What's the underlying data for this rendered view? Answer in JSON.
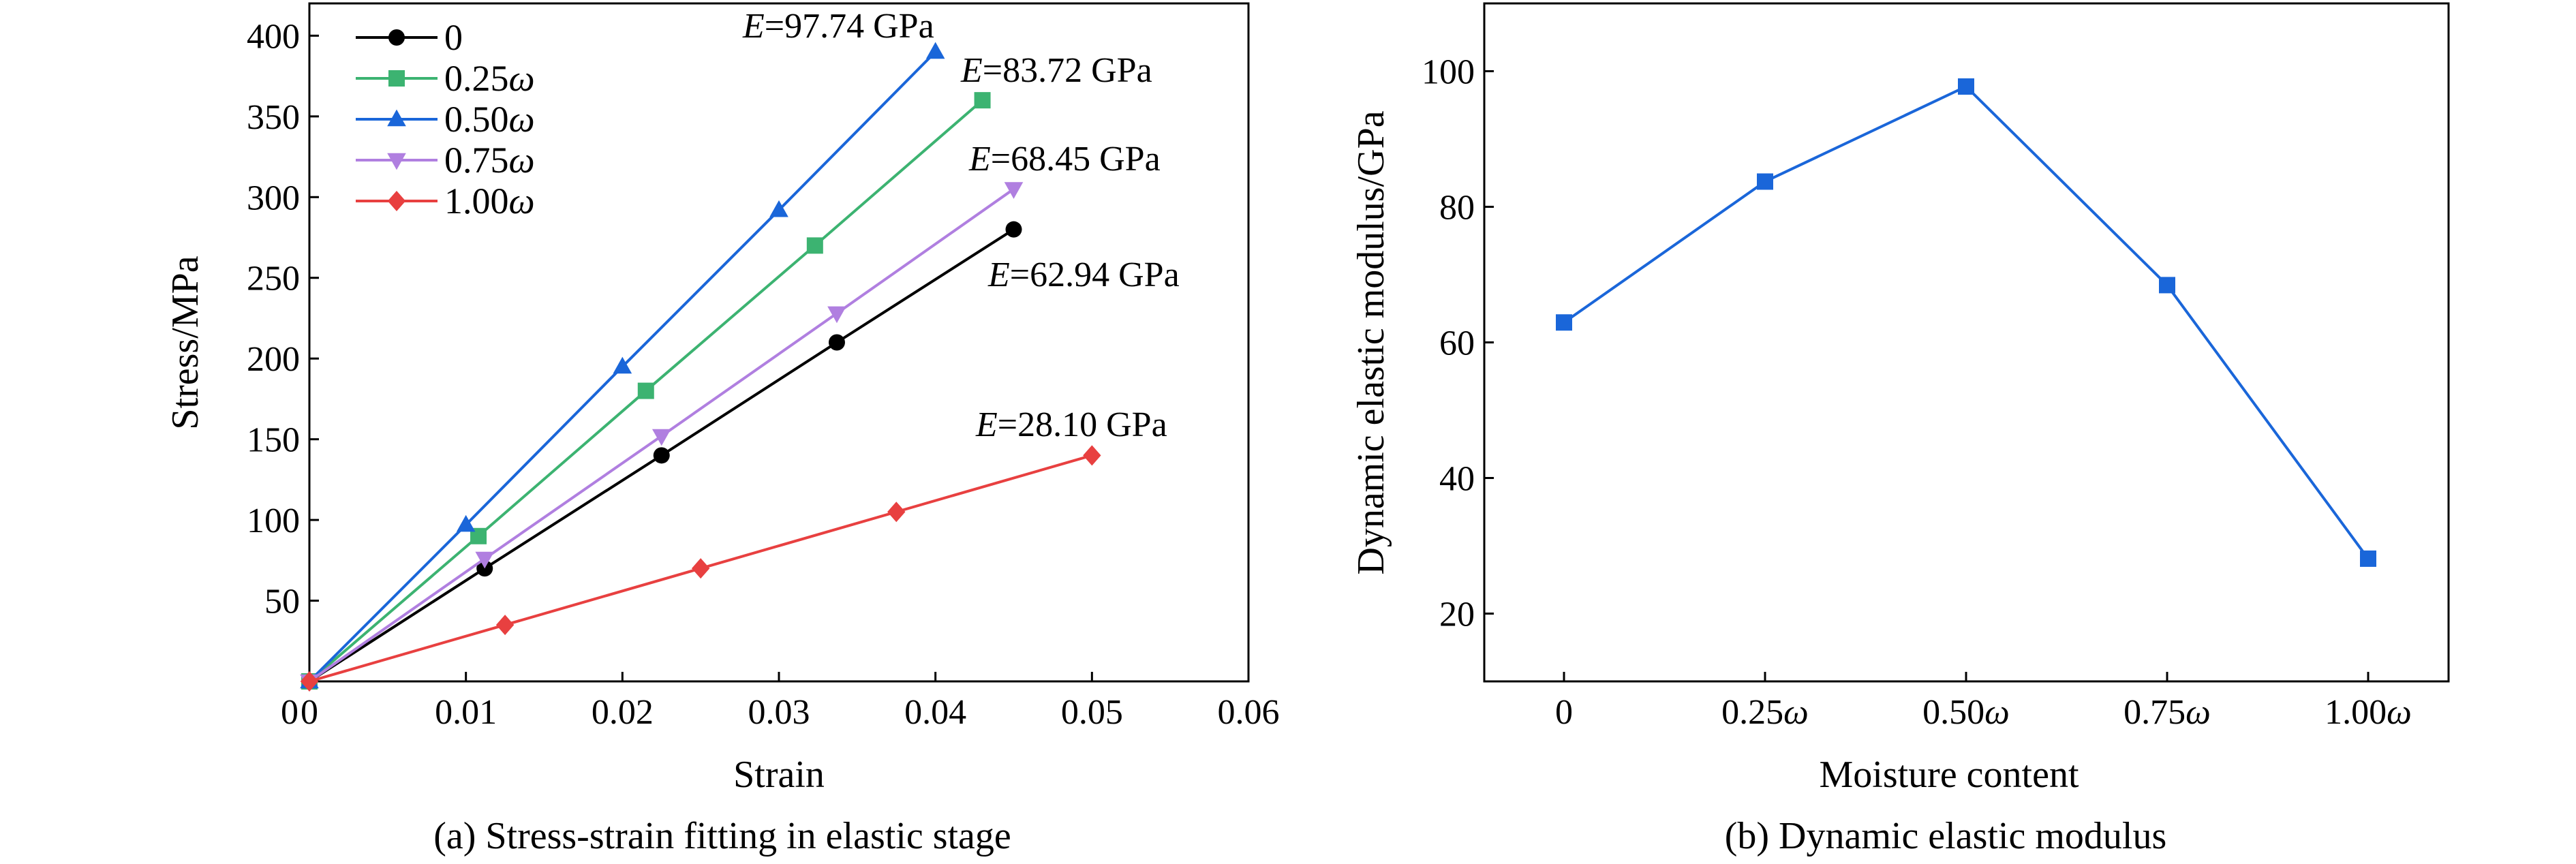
{
  "chart_data": [
    {
      "type": "line",
      "caption": "(a) Stress-strain fitting in elastic stage",
      "xlabel": "Strain",
      "ylabel": "Stress/MPa",
      "xlim": [
        0,
        0.06
      ],
      "ylim": [
        0,
        420
      ],
      "x_ticks": [
        "0",
        "0.01",
        "0.02",
        "0.03",
        "0.04",
        "0.05",
        "0.06"
      ],
      "x_tick_values": [
        0,
        0.01,
        0.02,
        0.03,
        0.04,
        0.05,
        0.06
      ],
      "y_ticks": [
        "50",
        "100",
        "150",
        "200",
        "250",
        "300",
        "350",
        "400"
      ],
      "y_tick_values": [
        50,
        100,
        150,
        200,
        250,
        300,
        350,
        400
      ],
      "grid": false,
      "legend_position": "top-left",
      "series": [
        {
          "name": "0",
          "color": "#000000",
          "marker": "circle",
          "x": [
            0,
            0.0112,
            0.0225,
            0.0337,
            0.045
          ],
          "y": [
            0,
            70,
            140,
            210,
            280
          ],
          "annotation": "=62.94 GPa"
        },
        {
          "name": "0.25ω",
          "color": "#3cb371",
          "marker": "square",
          "x": [
            0,
            0.0108,
            0.0215,
            0.0323,
            0.043
          ],
          "y": [
            0,
            90,
            180,
            270,
            360
          ],
          "annotation": "=83.72 GPa"
        },
        {
          "name": "0.50ω",
          "color": "#1a66d9",
          "marker": "triangle-up",
          "x": [
            0,
            0.01,
            0.02,
            0.03,
            0.04
          ],
          "y": [
            0,
            97,
            195,
            292,
            390
          ],
          "annotation": "=97.74 GPa"
        },
        {
          "name": "0.75ω",
          "color": "#b07fe0",
          "marker": "triangle-down",
          "x": [
            0,
            0.0112,
            0.0225,
            0.0337,
            0.045
          ],
          "y": [
            0,
            76,
            152,
            228,
            305
          ],
          "annotation": "=68.45 GPa"
        },
        {
          "name": "1.00ω",
          "color": "#e84040",
          "marker": "diamond",
          "x": [
            0,
            0.0125,
            0.025,
            0.0375,
            0.05
          ],
          "y": [
            0,
            35,
            70,
            105,
            140
          ],
          "annotation": "=28.10 GPa"
        }
      ],
      "annotation_prefix": "E"
    },
    {
      "type": "line",
      "caption": "(b) Dynamic elastic modulus",
      "xlabel": "Moisture content",
      "ylabel": "Dynamic elastic modulus/GPa",
      "categories": [
        "0",
        "0.25ω",
        "0.50ω",
        "0.75ω",
        "1.00ω"
      ],
      "ylim": [
        10,
        110
      ],
      "y_ticks": [
        "20",
        "40",
        "60",
        "80",
        "100"
      ],
      "y_tick_values": [
        20,
        40,
        60,
        80,
        100
      ],
      "grid": false,
      "series": [
        {
          "color": "#1a66d9",
          "marker": "square",
          "values": [
            62.94,
            83.72,
            97.74,
            68.45,
            28.1
          ]
        }
      ]
    }
  ]
}
